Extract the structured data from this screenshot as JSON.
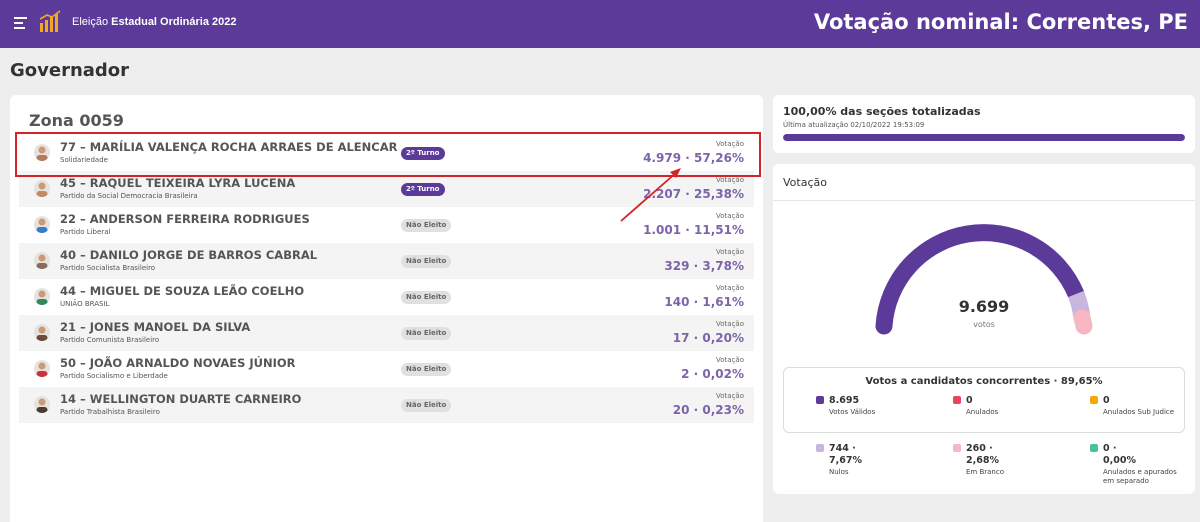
{
  "header": {
    "app_title_light": "Eleição",
    "app_title_bold": "Estadual Ordinária 2022",
    "page_title": "Votação nominal: Correntes, PE",
    "color": "#5b3a99"
  },
  "section_title": "Governador",
  "zona": "Zona 0059",
  "vot_label": "Votação",
  "candidates": [
    {
      "name": "77 – MARÍLIA VALENÇA ROCHA ARRAES DE ALENCAR",
      "party": "Solidariedade",
      "status": "2º Turno",
      "votes": "4.979 · 57,26%"
    },
    {
      "name": "45 – RAQUEL TEIXEIRA LYRA LUCENA",
      "party": "Partido da Social Democracia Brasileira",
      "status": "2º Turno",
      "votes": "2.207 · 25,38%"
    },
    {
      "name": "22 – ANDERSON FERREIRA RODRIGUES",
      "party": "Partido Liberal",
      "status": "Não Eleito",
      "votes": "1.001 · 11,51%"
    },
    {
      "name": "40 – DANILO JORGE DE BARROS CABRAL",
      "party": "Partido Socialista Brasileiro",
      "status": "Não Eleito",
      "votes": "329 · 3,78%"
    },
    {
      "name": "44 – MIGUEL DE SOUZA LEÃO COELHO",
      "party": "UNIÃO BRASIL",
      "status": "Não Eleito",
      "votes": "140 · 1,61%"
    },
    {
      "name": "21 – JONES MANOEL DA SILVA",
      "party": "Partido Comunista Brasileiro",
      "status": "Não Eleito",
      "votes": "17 · 0,20%"
    },
    {
      "name": "50 – JOÃO ARNALDO NOVAES JÚNIOR",
      "party": "Partido Socialismo e Liberdade",
      "status": "Não Eleito",
      "votes": "2 · 0,02%"
    },
    {
      "name": "14 – WELLINGTON DUARTE CARNEIRO",
      "party": "Partido Trabalhista Brasileiro",
      "status": "Não Eleito",
      "votes": "20 · 0,23%"
    }
  ],
  "progress": {
    "title": "100,00% das seções totalizadas",
    "subtitle": "Última atualização 02/10/2022 19:53:09",
    "percent": 100
  },
  "vote_panel": {
    "title": "Votação",
    "total": "9.699",
    "unit": "votos",
    "stats_title": "Votos a candidatos concorrentes · 89,65%",
    "stats": [
      {
        "value": "8.695",
        "label": "Votos Válidos",
        "color": "#5b3a99"
      },
      {
        "value": "0",
        "label": "Anulados",
        "color": "#e8445a"
      },
      {
        "value": "0",
        "label": "Anulados Sub Judice",
        "color": "#f2a900"
      },
      {
        "value": "744 · 7,67%",
        "label": "Nulos",
        "color": "#c9b6de"
      },
      {
        "value": "260 · 2,68%",
        "label": "Em Branco",
        "color": "#f6b7c2"
      },
      {
        "value": "0 · 0,00%",
        "label": "Anulados e apurados em separado",
        "color": "#45c49c"
      }
    ]
  }
}
